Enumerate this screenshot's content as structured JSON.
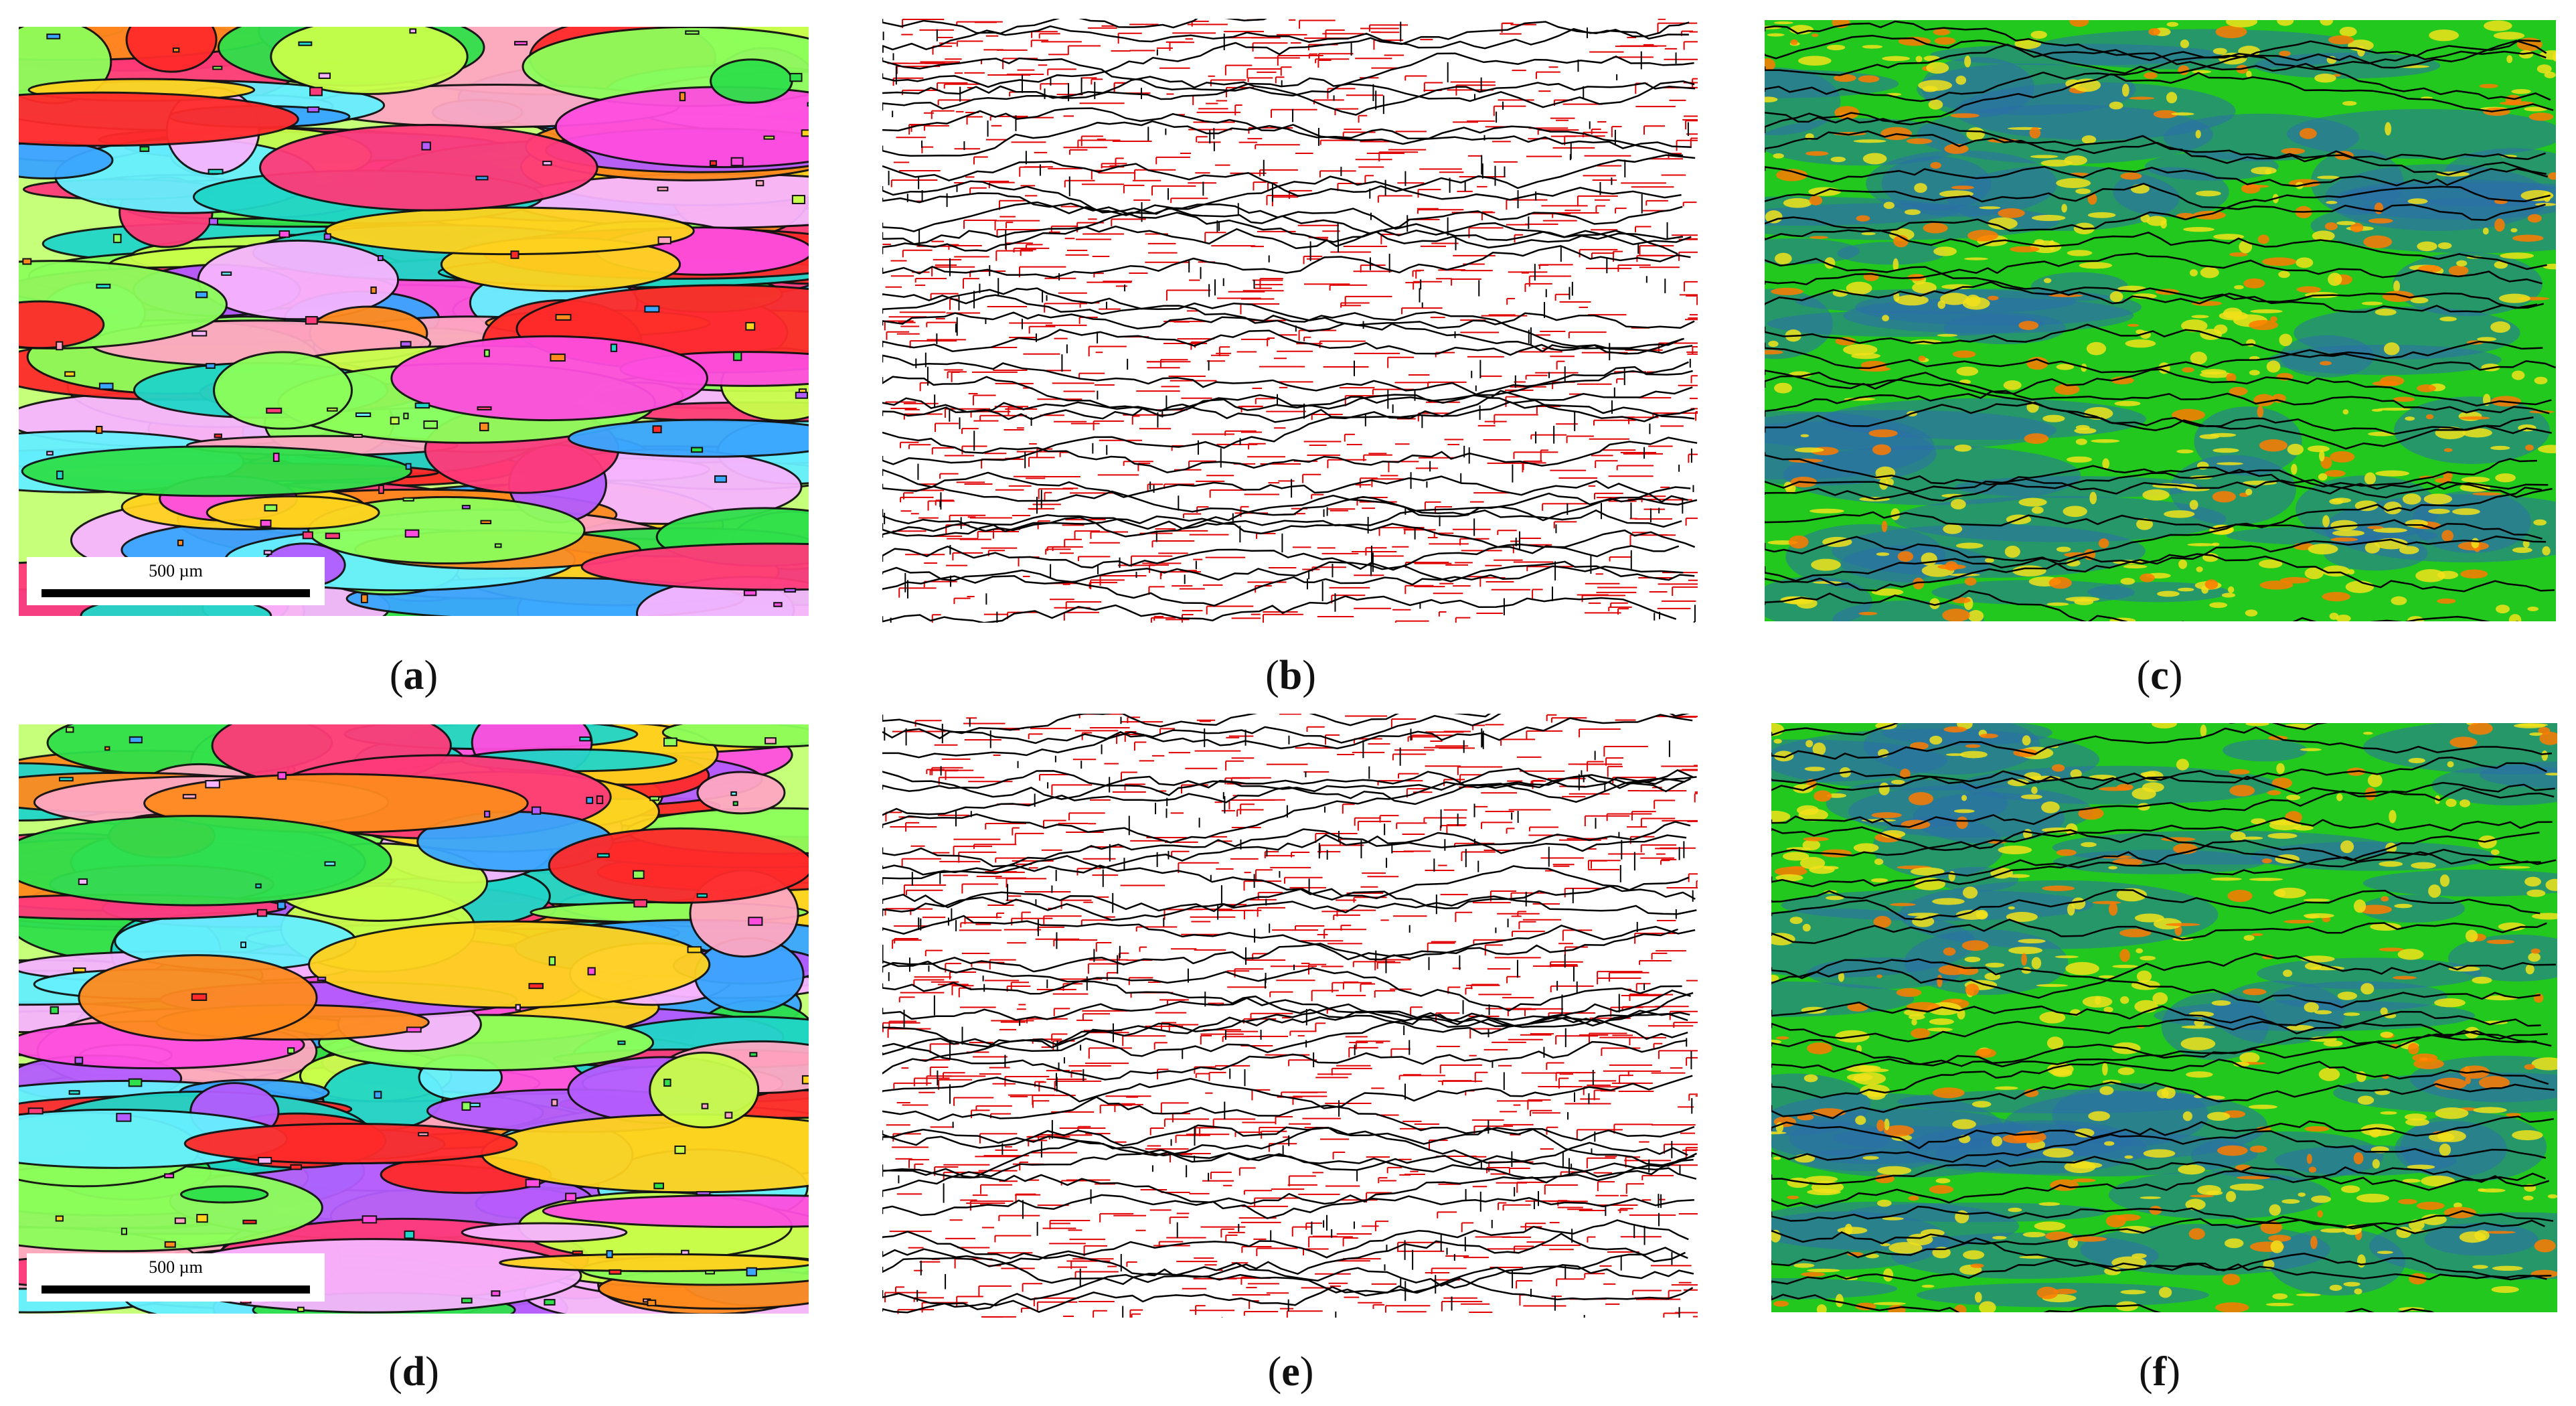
{
  "panels": [
    {
      "id": "a",
      "type": "ipf",
      "caption": "a",
      "scale_label": "500 µm"
    },
    {
      "id": "b",
      "type": "boundary",
      "caption": "b"
    },
    {
      "id": "c",
      "type": "kam",
      "caption": "c"
    },
    {
      "id": "d",
      "type": "ipf",
      "caption": "d",
      "scale_label": "500 µm"
    },
    {
      "id": "e",
      "type": "boundary",
      "caption": "e"
    },
    {
      "id": "f",
      "type": "kam",
      "caption": "f"
    }
  ],
  "colors": {
    "boundary_black": "#000000",
    "boundary_red": "#e00000",
    "kam_green": "#22c81e",
    "kam_blue": "#2a6fa8",
    "kam_yellow": "#f2e21a"
  }
}
